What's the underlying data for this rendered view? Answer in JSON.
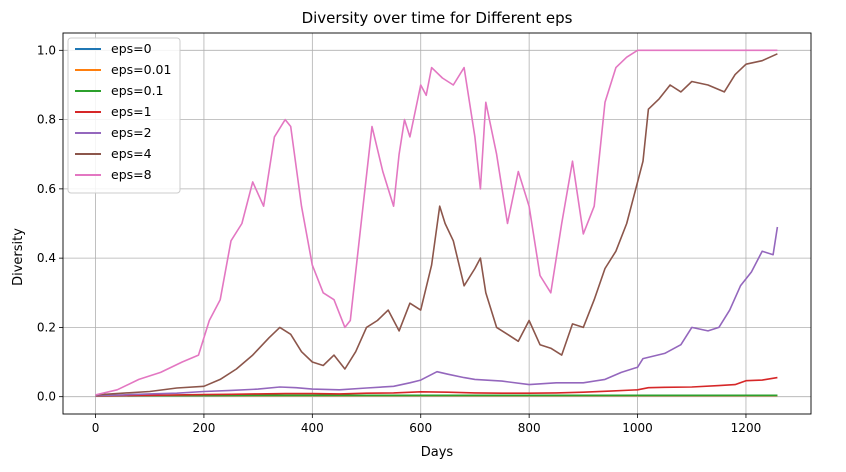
{
  "chart_data": {
    "type": "line",
    "title": "Diversity over time for Different eps",
    "xlabel": "Days",
    "ylabel": "Diversity",
    "xlim": [
      -60,
      1320
    ],
    "ylim": [
      -0.05,
      1.05
    ],
    "xticks": [
      0,
      200,
      400,
      600,
      800,
      1000,
      1200
    ],
    "yticks": [
      0.0,
      0.2,
      0.4,
      0.6,
      0.8,
      1.0
    ],
    "xtick_labels": [
      "0",
      "200",
      "400",
      "600",
      "800",
      "1000",
      "1200"
    ],
    "ytick_labels": [
      "0.0",
      "0.2",
      "0.4",
      "0.6",
      "0.8",
      "1.0"
    ],
    "grid": true,
    "legend_position": "top-left",
    "series": [
      {
        "name": "eps=0",
        "color": "#1f77b4",
        "x": [
          0,
          200,
          400,
          600,
          800,
          1000,
          1200,
          1258
        ],
        "y": [
          0.003,
          0.003,
          0.003,
          0.003,
          0.003,
          0.003,
          0.003,
          0.003
        ]
      },
      {
        "name": "eps=0.01",
        "color": "#ff7f0e",
        "x": [
          0,
          200,
          400,
          600,
          800,
          1000,
          1200,
          1258
        ],
        "y": [
          0.003,
          0.003,
          0.003,
          0.003,
          0.003,
          0.003,
          0.003,
          0.003
        ]
      },
      {
        "name": "eps=0.1",
        "color": "#2ca02c",
        "x": [
          0,
          100,
          200,
          300,
          400,
          500,
          600,
          700,
          800,
          900,
          1000,
          1100,
          1200,
          1258
        ],
        "y": [
          0.002,
          0.003,
          0.003,
          0.004,
          0.004,
          0.004,
          0.004,
          0.004,
          0.004,
          0.004,
          0.004,
          0.004,
          0.004,
          0.004
        ]
      },
      {
        "name": "eps=1",
        "color": "#d62728",
        "x": [
          0,
          50,
          100,
          150,
          200,
          250,
          300,
          350,
          400,
          450,
          500,
          550,
          600,
          650,
          700,
          750,
          800,
          850,
          900,
          950,
          1000,
          1020,
          1050,
          1100,
          1150,
          1180,
          1200,
          1230,
          1258
        ],
        "y": [
          0.002,
          0.003,
          0.004,
          0.005,
          0.006,
          0.007,
          0.008,
          0.009,
          0.009,
          0.008,
          0.01,
          0.011,
          0.014,
          0.013,
          0.011,
          0.01,
          0.01,
          0.011,
          0.013,
          0.016,
          0.02,
          0.026,
          0.027,
          0.028,
          0.032,
          0.035,
          0.046,
          0.048,
          0.055
        ]
      },
      {
        "name": "eps=2",
        "color": "#9467bd",
        "x": [
          0,
          50,
          100,
          150,
          200,
          250,
          300,
          340,
          370,
          400,
          450,
          500,
          550,
          580,
          600,
          630,
          650,
          680,
          700,
          750,
          800,
          850,
          900,
          940,
          970,
          1000,
          1010,
          1050,
          1080,
          1100,
          1130,
          1150,
          1170,
          1190,
          1210,
          1230,
          1250,
          1258
        ],
        "y": [
          0.003,
          0.005,
          0.008,
          0.01,
          0.015,
          0.018,
          0.022,
          0.028,
          0.026,
          0.022,
          0.02,
          0.025,
          0.03,
          0.04,
          0.048,
          0.072,
          0.065,
          0.055,
          0.05,
          0.045,
          0.035,
          0.04,
          0.04,
          0.05,
          0.07,
          0.085,
          0.11,
          0.125,
          0.15,
          0.2,
          0.19,
          0.2,
          0.25,
          0.32,
          0.36,
          0.42,
          0.41,
          0.49
        ]
      },
      {
        "name": "eps=4",
        "color": "#8c564b",
        "x": [
          0,
          50,
          100,
          150,
          200,
          230,
          260,
          290,
          320,
          340,
          360,
          380,
          400,
          420,
          440,
          460,
          480,
          500,
          520,
          540,
          560,
          580,
          600,
          620,
          635,
          645,
          660,
          680,
          700,
          710,
          720,
          740,
          760,
          780,
          800,
          820,
          840,
          860,
          880,
          900,
          920,
          940,
          960,
          980,
          1000,
          1010,
          1020,
          1040,
          1060,
          1080,
          1100,
          1130,
          1160,
          1180,
          1200,
          1230,
          1258
        ],
        "y": [
          0.005,
          0.01,
          0.015,
          0.025,
          0.03,
          0.05,
          0.08,
          0.12,
          0.17,
          0.2,
          0.18,
          0.13,
          0.1,
          0.09,
          0.12,
          0.08,
          0.13,
          0.2,
          0.22,
          0.25,
          0.19,
          0.27,
          0.25,
          0.38,
          0.55,
          0.5,
          0.45,
          0.32,
          0.37,
          0.4,
          0.3,
          0.2,
          0.18,
          0.16,
          0.22,
          0.15,
          0.14,
          0.12,
          0.21,
          0.2,
          0.28,
          0.37,
          0.42,
          0.5,
          0.62,
          0.68,
          0.83,
          0.86,
          0.9,
          0.88,
          0.91,
          0.9,
          0.88,
          0.93,
          0.96,
          0.97,
          0.99
        ]
      },
      {
        "name": "eps=8",
        "color": "#e377c2",
        "x": [
          0,
          40,
          80,
          120,
          160,
          190,
          210,
          230,
          250,
          270,
          290,
          310,
          330,
          350,
          360,
          380,
          400,
          420,
          440,
          460,
          470,
          490,
          510,
          530,
          550,
          560,
          570,
          580,
          600,
          610,
          620,
          640,
          660,
          680,
          700,
          710,
          720,
          740,
          760,
          780,
          800,
          820,
          840,
          860,
          880,
          900,
          920,
          940,
          960,
          980,
          1000,
          1050,
          1100,
          1150,
          1200,
          1258
        ],
        "y": [
          0.005,
          0.02,
          0.05,
          0.07,
          0.1,
          0.12,
          0.22,
          0.28,
          0.45,
          0.5,
          0.62,
          0.55,
          0.75,
          0.8,
          0.78,
          0.55,
          0.38,
          0.3,
          0.28,
          0.2,
          0.22,
          0.5,
          0.78,
          0.65,
          0.55,
          0.7,
          0.8,
          0.75,
          0.9,
          0.87,
          0.95,
          0.92,
          0.9,
          0.95,
          0.75,
          0.6,
          0.85,
          0.7,
          0.5,
          0.65,
          0.55,
          0.35,
          0.3,
          0.5,
          0.68,
          0.47,
          0.55,
          0.85,
          0.95,
          0.98,
          1.0,
          1.0,
          1.0,
          1.0,
          1.0,
          1.0
        ]
      }
    ]
  }
}
